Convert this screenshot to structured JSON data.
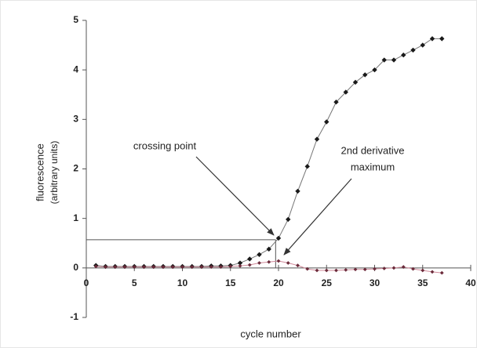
{
  "chart_data": {
    "type": "line",
    "xlabel": "cycle number",
    "ylabel": "fluorescence",
    "ylabel_sub": "(arbitrary units)",
    "x": [
      1,
      2,
      3,
      4,
      5,
      6,
      7,
      8,
      9,
      10,
      11,
      12,
      13,
      14,
      15,
      16,
      17,
      18,
      19,
      20,
      21,
      22,
      23,
      24,
      25,
      26,
      27,
      28,
      29,
      30,
      31,
      32,
      33,
      34,
      35,
      36,
      37
    ],
    "series": [
      {
        "color": "#1a1a1a",
        "line_color": "#777777",
        "values": [
          0.05,
          0.03,
          0.03,
          0.03,
          0.03,
          0.03,
          0.03,
          0.03,
          0.03,
          0.03,
          0.03,
          0.03,
          0.04,
          0.04,
          0.05,
          0.1,
          0.18,
          0.27,
          0.38,
          0.6,
          0.98,
          1.55,
          2.05,
          2.6,
          2.95,
          3.35,
          3.55,
          3.75,
          3.9,
          4.0,
          4.2,
          4.2,
          4.3,
          4.4,
          4.5,
          4.63,
          4.63
        ]
      },
      {
        "color": "#6b2a3a",
        "line_color": "#d08a9a",
        "values": [
          0.03,
          0.02,
          0.02,
          0.02,
          0.02,
          0.02,
          0.02,
          0.02,
          0.02,
          0.02,
          0.02,
          0.02,
          0.02,
          0.02,
          0.03,
          0.04,
          0.06,
          0.1,
          0.12,
          0.14,
          0.1,
          0.05,
          -0.02,
          -0.05,
          -0.05,
          -0.05,
          -0.04,
          -0.03,
          -0.03,
          -0.02,
          -0.01,
          0.0,
          0.02,
          -0.02,
          -0.05,
          -0.08,
          -0.1
        ]
      }
    ],
    "crossing_point": {
      "x": 19.7,
      "y": 0.57
    },
    "annotations": [
      {
        "lines": [
          "crossing point"
        ]
      },
      {
        "lines": [
          "2nd derivative",
          "maximum"
        ]
      }
    ],
    "xlim": [
      0,
      40
    ],
    "xticks": [
      0,
      5,
      10,
      15,
      20,
      25,
      30,
      35,
      40
    ],
    "ylim": [
      -1,
      5
    ],
    "yticks": [
      -1,
      0,
      1,
      2,
      3,
      4,
      5
    ]
  }
}
